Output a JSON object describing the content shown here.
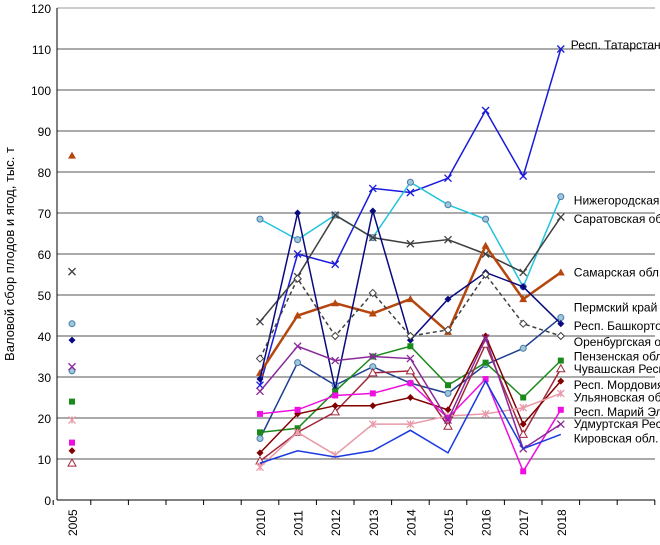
{
  "chart_data": {
    "type": "line",
    "title": "",
    "xlabel": "",
    "ylabel": "Валовой сбор плодов и ягод, тыс. т",
    "ylim": [
      0,
      120
    ],
    "yticks": [
      0,
      10,
      20,
      30,
      40,
      50,
      60,
      70,
      80,
      90,
      100,
      110,
      120
    ],
    "xticks": [
      "2005",
      "2010",
      "2011",
      "2012",
      "2013",
      "2014",
      "2015",
      "2016",
      "2017",
      "2018"
    ],
    "x": [
      2010,
      2011,
      2012,
      2013,
      2014,
      2015,
      2016,
      2017,
      2018
    ],
    "grid": true,
    "series": [
      {
        "name": "Респ. Татарстан",
        "color": "#1a1adb",
        "marker": "x",
        "values": [
          28,
          60,
          57.5,
          76,
          75,
          78.5,
          95,
          79,
          110
        ],
        "v2005": null,
        "label_y": 111
      },
      {
        "name": "Нижегородская обл.",
        "color": "#22c4dc",
        "marker": "circle",
        "values": [
          68.5,
          63.5,
          69.5,
          64,
          77.5,
          72,
          68.5,
          52,
          74
        ],
        "v2005": 43,
        "label_y": 73
      },
      {
        "name": "Саратовская обл.",
        "color": "#404040",
        "marker": "x",
        "values": [
          43.5,
          54.5,
          69.5,
          64,
          62.5,
          63.5,
          60,
          55.5,
          69
        ],
        "v2005": 55.7,
        "label_y": 68.5
      },
      {
        "name": "Самарская обл.",
        "color": "#b4460e",
        "marker": "triangle",
        "values": [
          31,
          45,
          48,
          45.5,
          49,
          41,
          62,
          49,
          55.5
        ],
        "v2005": 84,
        "label_y": 55.5,
        "width": 2.5
      },
      {
        "name": "Пермский край",
        "color": "#1f3f8f",
        "marker": "circle",
        "values": [
          15,
          33.5,
          28,
          32.5,
          28.5,
          26,
          33,
          37,
          44.5
        ],
        "v2005": 31.5,
        "label_y": 47
      },
      {
        "name": "Респ. Башкортостан",
        "color": "#0a0a80",
        "marker": "diamond",
        "values": [
          29.5,
          70,
          27,
          70.5,
          39,
          49,
          55.5,
          52,
          43
        ],
        "v2005": 39,
        "label_y": 42.5
      },
      {
        "name": "Оренбургская обл.",
        "color": "#404040",
        "marker": "odiamond",
        "values": [
          34.5,
          54,
          40,
          50.5,
          40,
          41.5,
          55,
          43,
          40
        ],
        "v2005": null,
        "label_y": 38.5,
        "dash": true
      },
      {
        "name": "Пензенская обл.",
        "color": "#1a8a1a",
        "marker": "square",
        "values": [
          16.5,
          17.5,
          26.5,
          35,
          37.5,
          28,
          33.5,
          25,
          34
        ],
        "v2005": 24,
        "label_y": 35
      },
      {
        "name": "Чувашская Респ.",
        "color": "#a0283c",
        "marker": "otriangle",
        "values": [
          9.5,
          16.5,
          21.5,
          31,
          31.5,
          18,
          38,
          16,
          32
        ],
        "v2005": 9,
        "label_y": 32
      },
      {
        "name": "Респ. Мордовия",
        "color": "#800000",
        "marker": "diamond",
        "values": [
          11.5,
          21,
          23,
          23,
          25,
          22,
          40,
          18.5,
          29
        ],
        "v2005": 12,
        "label_y": 28
      },
      {
        "name": "Ульяновская обл.",
        "color": "#e89aa8",
        "marker": "star",
        "values": [
          8,
          16.5,
          11,
          18.5,
          18.5,
          20.5,
          21,
          22.5,
          26
        ],
        "v2005": 19.5,
        "label_y": 25
      },
      {
        "name": "Респ. Марий Эл",
        "color": "#ee10e0",
        "marker": "square",
        "values": [
          21,
          22,
          25.5,
          26,
          28.5,
          20,
          29.5,
          7,
          22
        ],
        "v2005": 14,
        "label_y": 21.5
      },
      {
        "name": "Удмуртская Респ.",
        "color": "#8a2a9a",
        "marker": "x",
        "values": [
          26.5,
          37.5,
          34,
          35,
          34.5,
          19.5,
          39.5,
          12.5,
          18.5
        ],
        "v2005": 32.5,
        "label_y": 18.5
      },
      {
        "name": "Кировская обл.",
        "color": "#1a3ae0",
        "marker": "none",
        "values": [
          9,
          12,
          10.5,
          12,
          17,
          11.5,
          29,
          12.5,
          16
        ],
        "v2005": null,
        "label_y": 15
      }
    ]
  }
}
